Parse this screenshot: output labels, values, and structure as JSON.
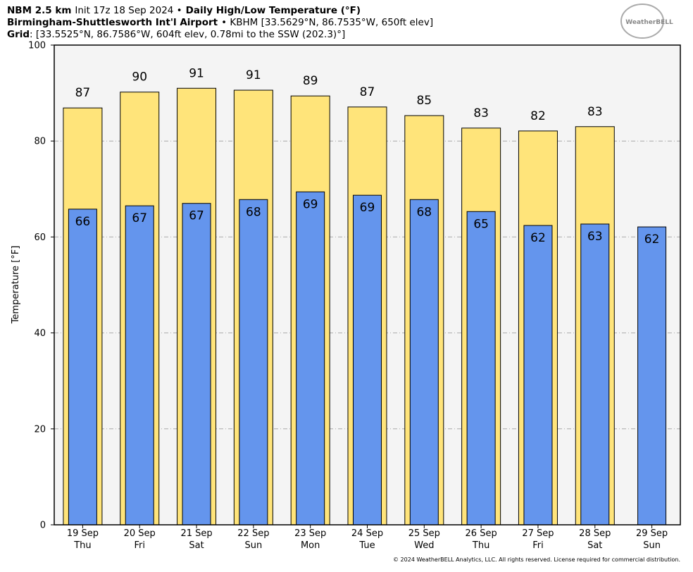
{
  "chart_data": {
    "type": "bar",
    "title_lines": [
      [
        {
          "text": "NBM 2.5 km",
          "bold": true
        },
        {
          "text": "Init 17z 18 Sep 2024 •"
        },
        {
          "text": "Daily High/Low Temperature (°F)",
          "bold": true
        }
      ],
      [
        {
          "text": "Birmingham-Shuttlesworth Int'l Airport",
          "bold": true
        },
        {
          "text": "• KBHM [33.5629°N, 86.7535°W, 650ft elev]"
        }
      ],
      [
        {
          "text": "Grid",
          "bold": true
        },
        {
          "text": ": [33.5525°N, 86.7586°W, 604ft elev, 0.78mi to the SSW (202.3)°]"
        }
      ]
    ],
    "logo": "WeatherBELL",
    "footer": "© 2024 WeatherBELL Analytics, LLC. All rights reserved. License required for commercial distribution.",
    "y_label": "Temperature [°F]",
    "categories": [
      "19 Sep",
      "20 Sep",
      "21 Sep",
      "22 Sep",
      "23 Sep",
      "24 Sep",
      "25 Sep",
      "26 Sep",
      "27 Sep",
      "28 Sep",
      "29 Sep"
    ],
    "weekdays": [
      "Thu",
      "Fri",
      "Sat",
      "Sun",
      "Mon",
      "Tue",
      "Wed",
      "Thu",
      "Fri",
      "Sat",
      "Sun"
    ],
    "series": [
      {
        "color": "#ffe47a",
        "values": [
          86.9,
          90.2,
          91.0,
          90.6,
          89.4,
          87.1,
          85.3,
          82.7,
          82.1,
          83.0,
          null
        ],
        "value_labels": [
          "87",
          "90",
          "91",
          "91",
          "89",
          "87",
          "85",
          "83",
          "82",
          "83",
          null
        ]
      },
      {
        "color": "#6495ed",
        "values": [
          65.8,
          66.5,
          67.0,
          67.8,
          69.4,
          68.7,
          67.8,
          65.3,
          62.4,
          62.7,
          62.1
        ],
        "value_labels": [
          "66",
          "67",
          "67",
          "68",
          "69",
          "69",
          "68",
          "65",
          "62",
          "63",
          "62"
        ]
      }
    ],
    "ylim": [
      0,
      100
    ],
    "yticks": [
      0,
      20,
      40,
      60,
      80,
      100
    ],
    "grid": true
  }
}
